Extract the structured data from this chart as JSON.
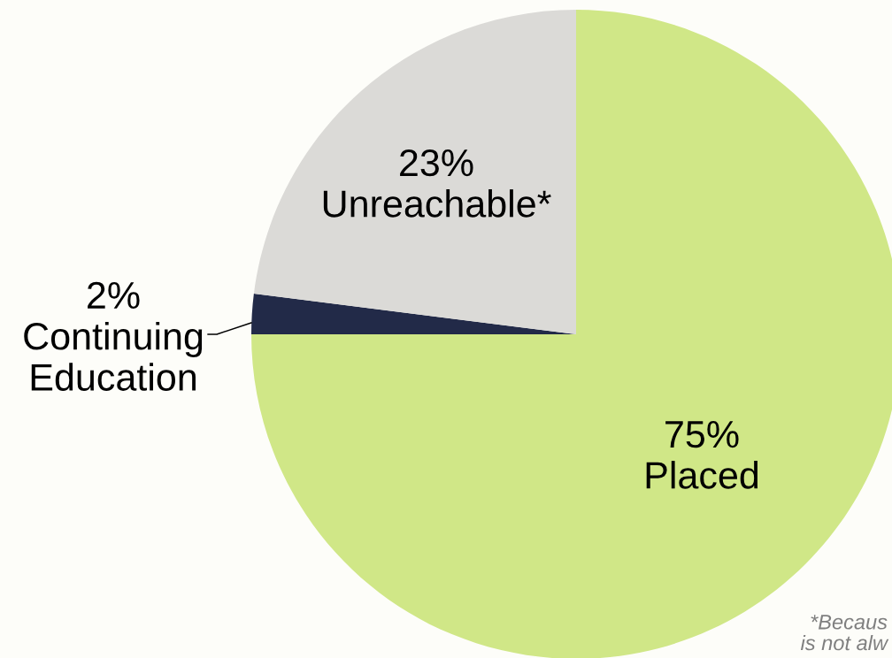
{
  "chart_data": {
    "type": "pie",
    "categories": [
      "Placed",
      "Continuing\nEducation",
      "Unreachable*"
    ],
    "values": [
      75,
      2,
      23
    ],
    "colors": [
      "#d0e787",
      "#222a48",
      "#dbdad7"
    ],
    "value_labels": [
      "75%",
      "2%",
      "23%"
    ],
    "annotations": [
      "*Becaus\nis not alw"
    ]
  }
}
